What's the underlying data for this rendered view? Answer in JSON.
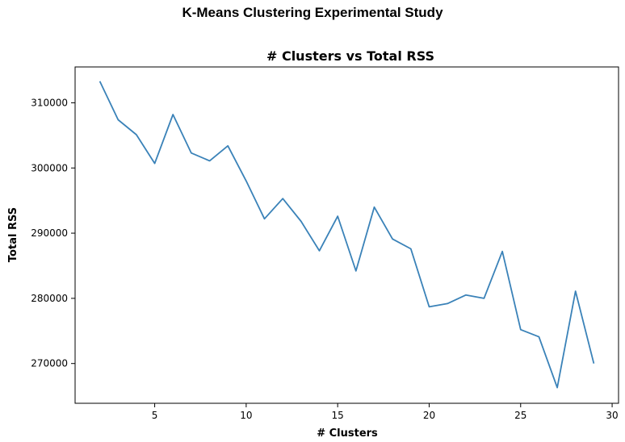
{
  "page": {
    "title": "K-Means Clustering Experimental Study"
  },
  "chart_data": {
    "type": "line",
    "title": "# Clusters vs Total RSS",
    "xlabel": "# Clusters",
    "ylabel": "Total RSS",
    "xlim": [
      0.65,
      30.35
    ],
    "ylim": [
      263900,
      315500
    ],
    "xticks": [
      5,
      10,
      15,
      20,
      25,
      30
    ],
    "yticks": [
      270000,
      280000,
      290000,
      300000,
      310000
    ],
    "grid": false,
    "line_color": "#3a82b8",
    "series": [
      {
        "x": [
          2,
          3,
          4,
          5,
          6,
          7,
          8,
          9,
          10,
          11,
          12,
          13,
          14,
          15,
          16,
          17,
          18,
          19,
          20,
          21,
          22,
          23,
          24,
          25,
          26,
          27,
          28,
          29
        ],
        "y": [
          313300,
          307400,
          305100,
          300700,
          308200,
          302300,
          301100,
          303400,
          298000,
          292200,
          295300,
          291800,
          287300,
          292600,
          284200,
          294000,
          289100,
          287600,
          278700,
          279200,
          280500,
          280000,
          287200,
          275200,
          274100,
          266300,
          281100,
          270000
        ]
      }
    ]
  }
}
